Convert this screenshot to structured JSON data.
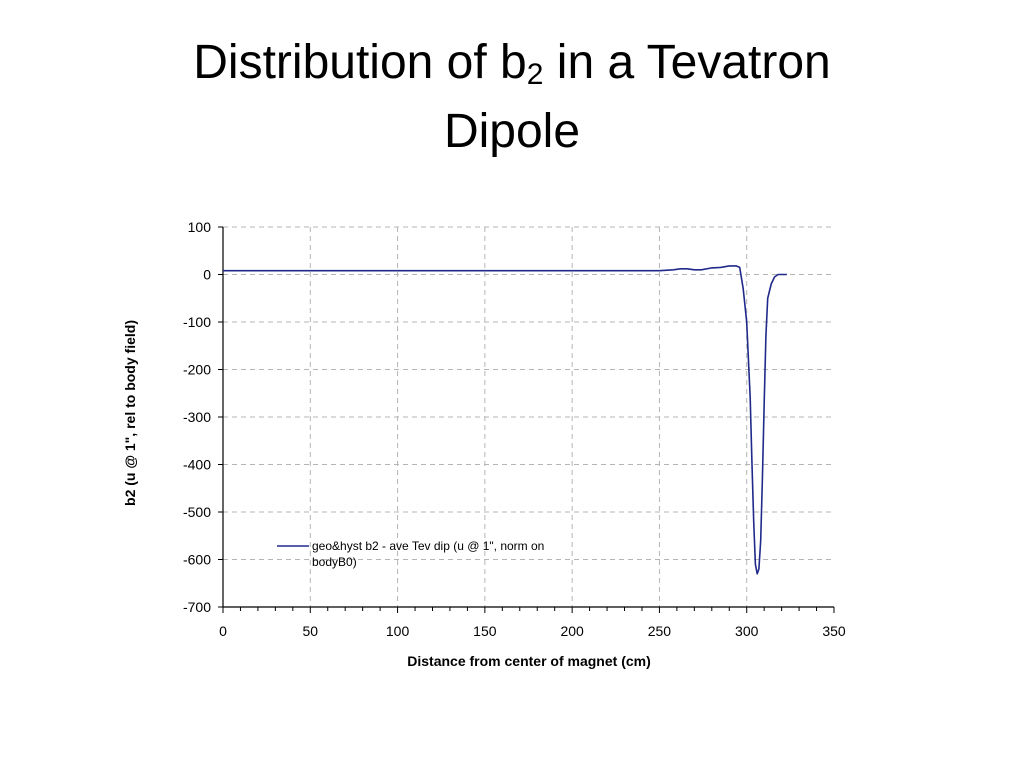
{
  "slide": {
    "title_line1_pre": "Distribution of b",
    "title_sub": "2",
    "title_line1_post": " in a Tevatron",
    "title_line2": "Dipole"
  },
  "chart_data": {
    "type": "line",
    "title": "",
    "xlabel": "Distance from center of magnet (cm)",
    "ylabel": "b2 (u @ 1\", rel to body field)",
    "xlim": [
      0,
      350
    ],
    "ylim": [
      -700,
      100
    ],
    "xticks": [
      0,
      50,
      100,
      150,
      200,
      250,
      300,
      350
    ],
    "yticks": [
      100,
      0,
      -100,
      -200,
      -300,
      -400,
      -500,
      -600,
      -700
    ],
    "grid": true,
    "legend_placement": "lower-left",
    "line_color": "#1f2a8a",
    "series": [
      {
        "name": "geo&hyst b2 - ave Tev dip (u @ 1\", norm on bodyB0)",
        "legend_line1": "geo&hyst b2 - ave Tev dip (u @ 1\", norm on",
        "legend_line2": "bodyB0)",
        "x": [
          0,
          50,
          100,
          150,
          200,
          250,
          258,
          262,
          266,
          270,
          274,
          280,
          285,
          290,
          294,
          296,
          298,
          300,
          302,
          303,
          304,
          305,
          306,
          307,
          308,
          309,
          310,
          311,
          312,
          314,
          316,
          318,
          320,
          323
        ],
        "y": [
          8,
          8,
          8,
          8,
          8,
          8,
          10,
          12,
          12,
          10,
          10,
          14,
          15,
          18,
          18,
          15,
          -30,
          -100,
          -260,
          -400,
          -520,
          -610,
          -630,
          -620,
          -560,
          -430,
          -270,
          -130,
          -50,
          -20,
          -5,
          0,
          0,
          0
        ]
      }
    ]
  }
}
